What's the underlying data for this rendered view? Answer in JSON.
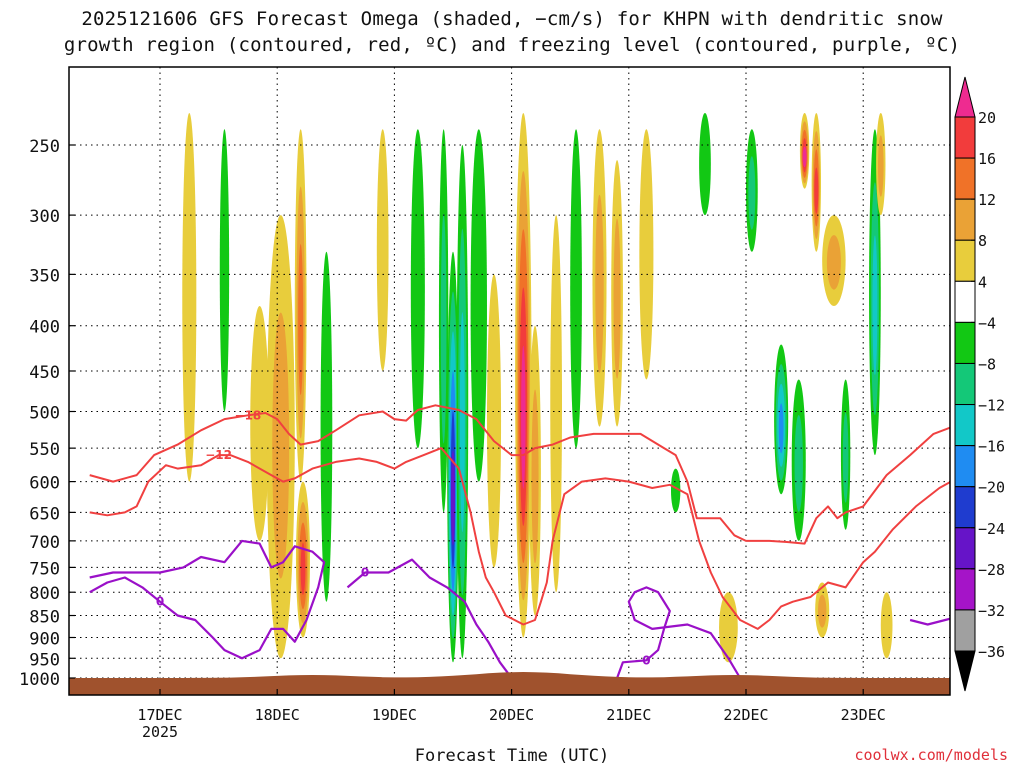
{
  "title_line1": "2025121606 GFS Forecast Omega (shaded, −cm/s) for KHPN with dendritic snow",
  "title_line2": "growth region (contoured, red, ºC) and freezing level (contoured, purple, ºC)",
  "credit": "coolwx.com/models",
  "chart_data": {
    "type": "heatmap",
    "title": "2025121606 GFS Forecast Omega (shaded, −cm/s) for KHPN with dendritic snow growth region (contoured, red, ºC) and freezing level (contoured, purple, ºC)",
    "xlabel": "Forecast Time (UTC)",
    "ylabel": "",
    "x_ticks": [
      "17DEC",
      "18DEC",
      "19DEC",
      "20DEC",
      "21DEC",
      "22DEC",
      "23DEC"
    ],
    "x_year_label": "2025",
    "y_ticks": [
      250,
      300,
      350,
      400,
      450,
      500,
      550,
      600,
      650,
      700,
      750,
      800,
      850,
      900,
      950,
      1000
    ],
    "y_scale": "log-pressure (inverted)",
    "grid": true,
    "colorbar": {
      "labels": [
        "20",
        "16",
        "12",
        "8",
        "4",
        "−4",
        "−8",
        "−12",
        "−16",
        "−20",
        "−24",
        "−28",
        "−32",
        "−36"
      ],
      "bins": [
        {
          "range": ">20",
          "color": "#ee2b90"
        },
        {
          "range": "16 to 20",
          "color": "#f23c3c"
        },
        {
          "range": "12 to 16",
          "color": "#f07228"
        },
        {
          "range": "8 to 12",
          "color": "#eaa236"
        },
        {
          "range": "4 to 8",
          "color": "#e8cd3c"
        },
        {
          "range": "−4 to 4",
          "color": "#ffffff"
        },
        {
          "range": "−8 to −4",
          "color": "#12c814"
        },
        {
          "range": "−12 to −8",
          "color": "#14c878"
        },
        {
          "range": "−16 to −12",
          "color": "#12c8c8"
        },
        {
          "range": "−20 to −16",
          "color": "#1f8cf2"
        },
        {
          "range": "−24 to −20",
          "color": "#1f3ccf"
        },
        {
          "range": "−28 to −24",
          "color": "#6614c8"
        },
        {
          "range": "−32 to −28",
          "color": "#a514c8"
        },
        {
          "range": "−36 to −32",
          "color": "#a0a0a0"
        },
        {
          "range": "<−36",
          "color": "#000000"
        }
      ]
    },
    "omega_blobs": [
      {
        "t": 0.25,
        "p_top": 230,
        "p_bot": 600,
        "w": 0.06,
        "v": 6
      },
      {
        "t": 0.55,
        "p_top": 240,
        "p_bot": 500,
        "w": 0.04,
        "v": -5
      },
      {
        "t": 0.85,
        "p_top": 380,
        "p_bot": 700,
        "w": 0.08,
        "v": 5
      },
      {
        "t": 1.03,
        "p_top": 300,
        "p_bot": 950,
        "w": 0.12,
        "v": 11
      },
      {
        "t": 1.2,
        "p_top": 240,
        "p_bot": 600,
        "w": 0.05,
        "v": 14
      },
      {
        "t": 1.22,
        "p_top": 600,
        "p_bot": 900,
        "w": 0.06,
        "v": 18
      },
      {
        "t": 1.42,
        "p_top": 330,
        "p_bot": 820,
        "w": 0.05,
        "v": -6
      },
      {
        "t": 1.9,
        "p_top": 240,
        "p_bot": 450,
        "w": 0.05,
        "v": 7
      },
      {
        "t": 2.2,
        "p_top": 240,
        "p_bot": 550,
        "w": 0.06,
        "v": -6
      },
      {
        "t": 2.42,
        "p_top": 240,
        "p_bot": 650,
        "w": 0.04,
        "v": -10
      },
      {
        "t": 2.5,
        "p_top": 330,
        "p_bot": 960,
        "w": 0.05,
        "v": -24
      },
      {
        "t": 2.58,
        "p_top": 250,
        "p_bot": 950,
        "w": 0.05,
        "v": -14
      },
      {
        "t": 2.72,
        "p_top": 240,
        "p_bot": 600,
        "w": 0.07,
        "v": -6
      },
      {
        "t": 2.85,
        "p_top": 350,
        "p_bot": 750,
        "w": 0.06,
        "v": 6
      },
      {
        "t": 3.1,
        "p_top": 230,
        "p_bot": 900,
        "w": 0.07,
        "v": 22
      },
      {
        "t": 3.2,
        "p_top": 400,
        "p_bot": 850,
        "w": 0.05,
        "v": 10
      },
      {
        "t": 3.38,
        "p_top": 300,
        "p_bot": 800,
        "w": 0.05,
        "v": 6
      },
      {
        "t": 3.55,
        "p_top": 240,
        "p_bot": 550,
        "w": 0.05,
        "v": -6
      },
      {
        "t": 3.75,
        "p_top": 240,
        "p_bot": 520,
        "w": 0.06,
        "v": 8
      },
      {
        "t": 3.9,
        "p_top": 260,
        "p_bot": 520,
        "w": 0.05,
        "v": 11
      },
      {
        "t": 4.15,
        "p_top": 240,
        "p_bot": 460,
        "w": 0.06,
        "v": 6
      },
      {
        "t": 4.4,
        "p_top": 580,
        "p_bot": 650,
        "w": 0.04,
        "v": -6
      },
      {
        "t": 4.65,
        "p_top": 230,
        "p_bot": 300,
        "w": 0.05,
        "v": -6
      },
      {
        "t": 4.85,
        "p_top": 800,
        "p_bot": 960,
        "w": 0.08,
        "v": 7
      },
      {
        "t": 5.05,
        "p_top": 240,
        "p_bot": 330,
        "w": 0.05,
        "v": -9
      },
      {
        "t": 5.3,
        "p_top": 420,
        "p_bot": 620,
        "w": 0.06,
        "v": -16
      },
      {
        "t": 5.45,
        "p_top": 460,
        "p_bot": 700,
        "w": 0.06,
        "v": -10
      },
      {
        "t": 5.5,
        "p_top": 230,
        "p_bot": 280,
        "w": 0.04,
        "v": 22
      },
      {
        "t": 5.6,
        "p_top": 230,
        "p_bot": 330,
        "w": 0.04,
        "v": 16
      },
      {
        "t": 5.65,
        "p_top": 780,
        "p_bot": 900,
        "w": 0.06,
        "v": 10
      },
      {
        "t": 5.75,
        "p_top": 300,
        "p_bot": 380,
        "w": 0.1,
        "v": 9
      },
      {
        "t": 5.85,
        "p_top": 460,
        "p_bot": 680,
        "w": 0.04,
        "v": -8
      },
      {
        "t": 6.1,
        "p_top": 240,
        "p_bot": 560,
        "w": 0.05,
        "v": -14
      },
      {
        "t": 6.15,
        "p_top": 230,
        "p_bot": 300,
        "w": 0.04,
        "v": 8
      },
      {
        "t": 6.2,
        "p_top": 800,
        "p_bot": 950,
        "w": 0.05,
        "v": 4
      }
    ],
    "dgz_contours": [
      {
        "label": "−18",
        "points": [
          [
            -0.6,
            590
          ],
          [
            -0.4,
            600
          ],
          [
            -0.2,
            590
          ],
          [
            -0.05,
            560
          ],
          [
            0.15,
            545
          ],
          [
            0.35,
            525
          ],
          [
            0.55,
            510
          ],
          [
            0.75,
            505
          ],
          [
            0.9,
            502
          ],
          [
            1.0,
            510
          ],
          [
            1.1,
            530
          ],
          [
            1.2,
            545
          ],
          [
            1.35,
            540
          ],
          [
            1.5,
            525
          ],
          [
            1.7,
            505
          ],
          [
            1.9,
            500
          ],
          [
            2.0,
            510
          ],
          [
            2.1,
            512
          ],
          [
            2.2,
            498
          ],
          [
            2.35,
            492
          ],
          [
            2.55,
            498
          ],
          [
            2.7,
            510
          ],
          [
            2.85,
            540
          ],
          [
            3.0,
            560
          ],
          [
            3.1,
            560
          ],
          [
            3.2,
            550
          ],
          [
            3.35,
            545
          ],
          [
            3.5,
            535
          ],
          [
            3.7,
            530
          ],
          [
            3.9,
            530
          ],
          [
            4.1,
            530
          ],
          [
            4.3,
            550
          ],
          [
            4.4,
            560
          ],
          [
            4.5,
            600
          ],
          [
            4.58,
            660
          ],
          [
            4.65,
            660
          ],
          [
            4.78,
            660
          ],
          [
            4.9,
            690
          ],
          [
            5.0,
            700
          ],
          [
            5.2,
            700
          ],
          [
            5.35,
            702
          ],
          [
            5.5,
            705
          ],
          [
            5.6,
            660
          ],
          [
            5.7,
            640
          ],
          [
            5.78,
            660
          ],
          [
            5.85,
            650
          ],
          [
            6.0,
            640
          ],
          [
            6.2,
            590
          ],
          [
            6.4,
            560
          ],
          [
            6.6,
            530
          ],
          [
            6.8,
            518
          ],
          [
            7.0,
            510
          ]
        ]
      },
      {
        "label": "−12",
        "points": [
          [
            -0.6,
            650
          ],
          [
            -0.45,
            655
          ],
          [
            -0.3,
            650
          ],
          [
            -0.2,
            640
          ],
          [
            -0.1,
            600
          ],
          [
            0.05,
            575
          ],
          [
            0.15,
            580
          ],
          [
            0.35,
            575
          ],
          [
            0.5,
            560
          ],
          [
            0.6,
            560
          ],
          [
            0.75,
            570
          ],
          [
            0.95,
            590
          ],
          [
            1.05,
            600
          ],
          [
            1.15,
            595
          ],
          [
            1.3,
            580
          ],
          [
            1.5,
            570
          ],
          [
            1.7,
            565
          ],
          [
            1.85,
            570
          ],
          [
            2.0,
            580
          ],
          [
            2.1,
            570
          ],
          [
            2.25,
            560
          ],
          [
            2.4,
            550
          ],
          [
            2.55,
            580
          ],
          [
            2.65,
            650
          ],
          [
            2.72,
            720
          ],
          [
            2.78,
            770
          ],
          [
            2.85,
            800
          ],
          [
            2.95,
            850
          ],
          [
            3.1,
            870
          ],
          [
            3.2,
            860
          ],
          [
            3.25,
            820
          ],
          [
            3.3,
            780
          ],
          [
            3.35,
            700
          ],
          [
            3.45,
            620
          ],
          [
            3.6,
            600
          ],
          [
            3.8,
            595
          ],
          [
            4.0,
            600
          ],
          [
            4.2,
            610
          ],
          [
            4.35,
            605
          ],
          [
            4.5,
            620
          ],
          [
            4.6,
            700
          ],
          [
            4.7,
            760
          ],
          [
            4.8,
            810
          ],
          [
            4.95,
            860
          ],
          [
            5.1,
            880
          ],
          [
            5.2,
            860
          ],
          [
            5.3,
            830
          ],
          [
            5.4,
            820
          ],
          [
            5.55,
            810
          ],
          [
            5.7,
            780
          ],
          [
            5.85,
            790
          ],
          [
            6.0,
            740
          ],
          [
            6.1,
            720
          ],
          [
            6.25,
            680
          ],
          [
            6.45,
            640
          ],
          [
            6.65,
            610
          ],
          [
            6.85,
            590
          ],
          [
            7.0,
            580
          ]
        ]
      }
    ],
    "frz_contours": [
      {
        "label": "0",
        "points": [
          [
            -0.6,
            800
          ],
          [
            -0.45,
            780
          ],
          [
            -0.3,
            770
          ],
          [
            -0.15,
            790
          ],
          [
            0.0,
            820
          ],
          [
            0.15,
            850
          ],
          [
            0.3,
            860
          ],
          [
            0.45,
            900
          ],
          [
            0.55,
            930
          ],
          [
            0.7,
            950
          ],
          [
            0.85,
            930
          ],
          [
            0.95,
            880
          ],
          [
            1.05,
            880
          ],
          [
            1.15,
            910
          ],
          [
            1.25,
            860
          ],
          [
            1.35,
            790
          ],
          [
            1.4,
            740
          ],
          [
            1.3,
            720
          ],
          [
            1.15,
            710
          ],
          [
            1.05,
            740
          ],
          [
            0.95,
            750
          ],
          [
            0.85,
            705
          ],
          [
            0.7,
            700
          ],
          [
            0.55,
            740
          ],
          [
            0.35,
            730
          ],
          [
            0.2,
            750
          ],
          [
            0.0,
            760
          ],
          [
            -0.2,
            760
          ],
          [
            -0.4,
            760
          ],
          [
            -0.6,
            770
          ]
        ]
      },
      {
        "label": "0",
        "points": [
          [
            1.6,
            790
          ],
          [
            1.75,
            760
          ],
          [
            1.95,
            760
          ],
          [
            2.15,
            735
          ],
          [
            2.3,
            770
          ],
          [
            2.45,
            790
          ],
          [
            2.6,
            820
          ],
          [
            2.7,
            870
          ],
          [
            2.8,
            910
          ],
          [
            2.9,
            960
          ],
          [
            3.0,
            1000
          ]
        ]
      },
      {
        "label": "0",
        "points": [
          [
            3.9,
            1000
          ],
          [
            3.95,
            960
          ],
          [
            4.15,
            955
          ],
          [
            4.25,
            930
          ],
          [
            4.3,
            880
          ],
          [
            4.35,
            840
          ],
          [
            4.25,
            800
          ],
          [
            4.15,
            790
          ],
          [
            4.05,
            800
          ],
          [
            4.0,
            820
          ],
          [
            4.05,
            860
          ],
          [
            4.2,
            880
          ],
          [
            4.5,
            870
          ],
          [
            4.7,
            890
          ],
          [
            4.85,
            950
          ],
          [
            4.95,
            1000
          ]
        ]
      },
      {
        "label": "",
        "points": [
          [
            6.4,
            860
          ],
          [
            6.55,
            870
          ],
          [
            6.7,
            860
          ],
          [
            6.85,
            850
          ],
          [
            7.0,
            850
          ]
        ]
      }
    ]
  }
}
